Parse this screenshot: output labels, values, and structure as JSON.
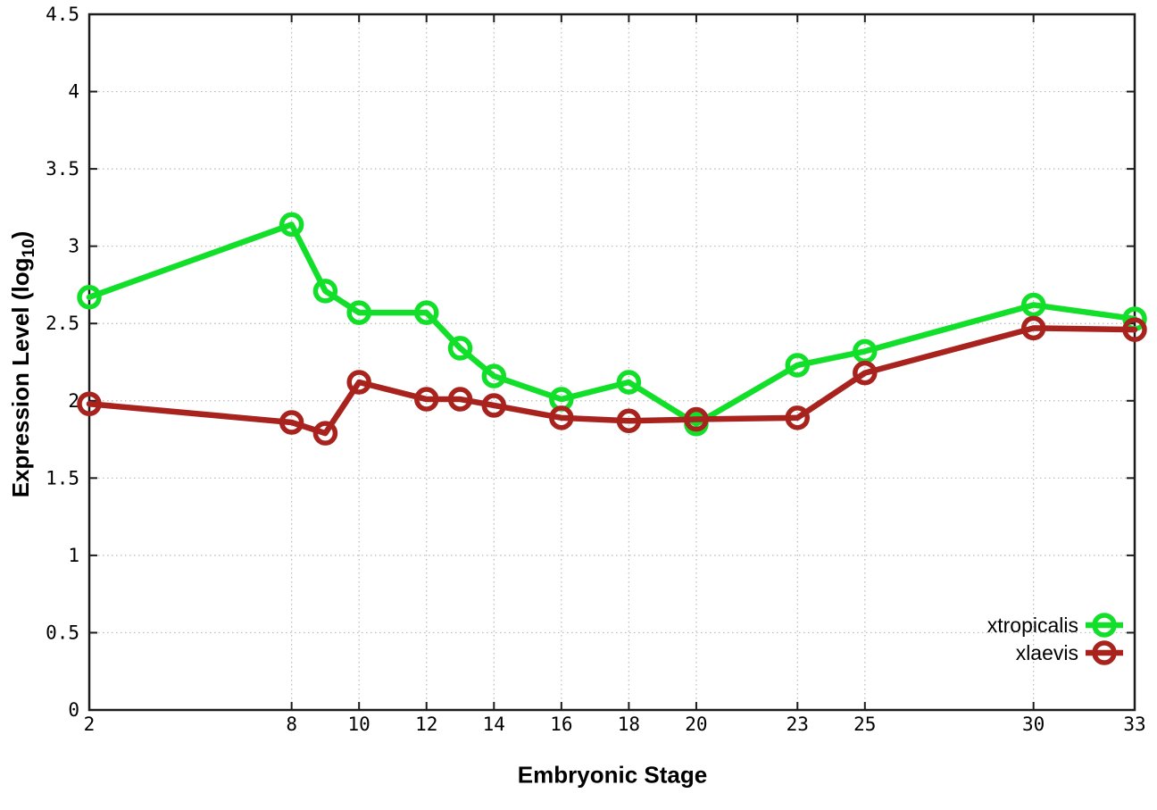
{
  "figure": {
    "xlabel": "Embryonic Stage",
    "ylabel": {
      "prefix": "Expression Level (log",
      "sub": "10",
      "suffix": ")"
    },
    "background_color": "#ffffff",
    "border_color": "#1c1c1c",
    "grid_color": "#b9b9b9"
  },
  "chart_data": {
    "type": "line",
    "title": "",
    "xlabel": "Embryonic Stage",
    "ylabel": "Expression Level (log10)",
    "x": [
      2,
      8,
      9,
      10,
      12,
      13,
      14,
      16,
      18,
      20,
      23,
      25,
      30,
      33
    ],
    "series": [
      {
        "name": "xtropicalis",
        "color": "#12df29",
        "values": [
          2.67,
          3.14,
          2.71,
          2.57,
          2.57,
          2.34,
          2.16,
          2.01,
          2.12,
          1.85,
          2.23,
          2.32,
          2.62,
          2.53
        ]
      },
      {
        "name": "xlaevis",
        "color": "#a8231e",
        "values": [
          1.98,
          1.86,
          1.79,
          2.12,
          2.01,
          2.01,
          1.97,
          1.89,
          1.87,
          1.88,
          1.89,
          2.18,
          2.47,
          2.46
        ]
      }
    ],
    "xlim": [
      2,
      33
    ],
    "ylim": [
      0,
      4.5
    ],
    "xticks": [
      2,
      8,
      10,
      12,
      14,
      16,
      18,
      20,
      23,
      25,
      30,
      33
    ],
    "yticks": [
      0,
      0.5,
      1,
      1.5,
      2,
      2.5,
      3,
      3.5,
      4,
      4.5
    ],
    "grid": true,
    "marker": "open-circle",
    "legend_position": "bottom-right"
  }
}
